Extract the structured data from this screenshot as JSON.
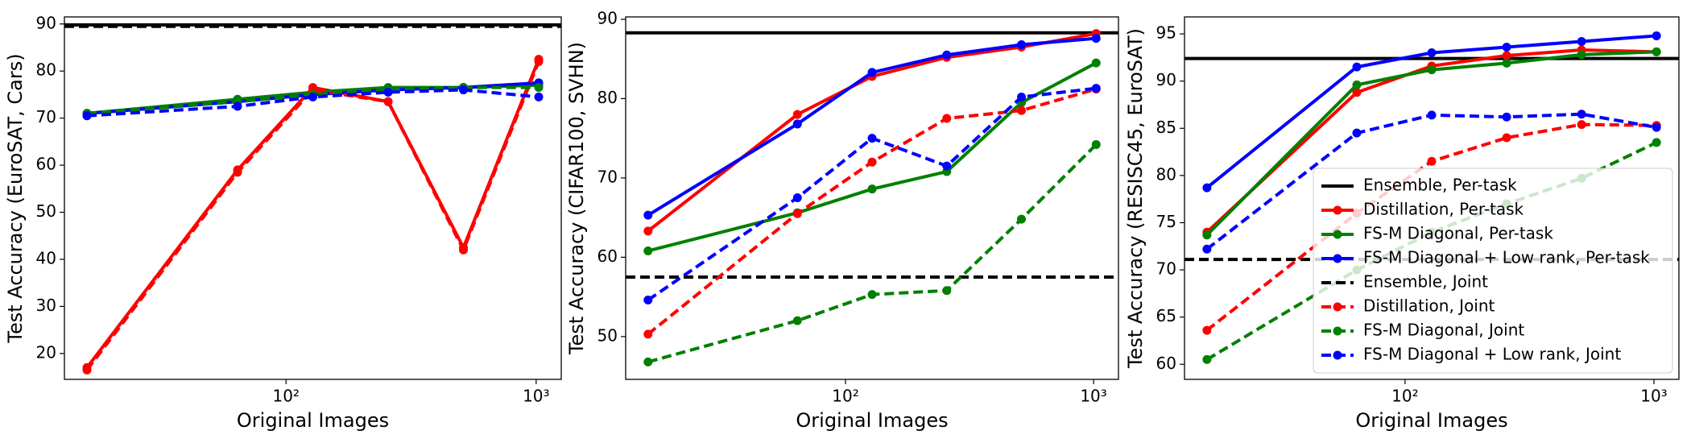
{
  "chart_data": [
    {
      "type": "line",
      "xlabel": "Original Images",
      "ylabel": "Test Accuracy (EuroSAT, Cars)",
      "xscale": "log",
      "xlim": [
        13,
        1260
      ],
      "xticks": [
        {
          "value": 100,
          "label": "10²"
        },
        {
          "value": 1000,
          "label": "10³"
        }
      ],
      "ylim": [
        14.5,
        91.5
      ],
      "yticks": [
        20,
        30,
        40,
        50,
        60,
        70,
        80,
        90
      ],
      "x": [
        16,
        64,
        128,
        256,
        512,
        1024
      ],
      "series": [
        {
          "color": "#000000",
          "dash": false,
          "hline": 89.8
        },
        {
          "color": "#ff0000",
          "dash": false,
          "values": [
            17,
            59,
            76.5,
            73.5,
            42.5,
            82.5
          ]
        },
        {
          "color": "#008000",
          "dash": false,
          "values": [
            71,
            74,
            75.5,
            76.5,
            76.5,
            77
          ]
        },
        {
          "color": "#0000ff",
          "dash": false,
          "values": [
            71,
            73.5,
            75,
            76,
            76.5,
            77.5
          ]
        },
        {
          "color": "#000000",
          "dash": true,
          "hline": 89.5
        },
        {
          "color": "#ff0000",
          "dash": true,
          "values": [
            16.5,
            58.5,
            76,
            73.5,
            42,
            82
          ]
        },
        {
          "color": "#008000",
          "dash": true,
          "values": [
            71,
            73.5,
            75,
            76,
            76.5,
            76.5
          ]
        },
        {
          "color": "#0000ff",
          "dash": true,
          "values": [
            70.5,
            72.5,
            74.5,
            75.5,
            76,
            74.5
          ]
        }
      ]
    },
    {
      "type": "line",
      "xlabel": "Original Images",
      "ylabel": "Test Accuracy (CIFAR100, SVHN)",
      "xscale": "log",
      "xlim": [
        13,
        1260
      ],
      "xticks": [
        {
          "value": 100,
          "label": "10²"
        },
        {
          "value": 1000,
          "label": "10³"
        }
      ],
      "ylim": [
        44.6,
        90.3
      ],
      "yticks": [
        50,
        60,
        70,
        80,
        90
      ],
      "x": [
        16,
        64,
        128,
        256,
        512,
        1024
      ],
      "series": [
        {
          "color": "#000000",
          "dash": false,
          "hline": 88.3
        },
        {
          "color": "#ff0000",
          "dash": false,
          "values": [
            63.3,
            78,
            82.8,
            85.2,
            86.5,
            88.2
          ]
        },
        {
          "color": "#008000",
          "dash": false,
          "values": [
            60.8,
            65.6,
            68.6,
            70.8,
            79.5,
            84.5
          ]
        },
        {
          "color": "#0000ff",
          "dash": false,
          "values": [
            65.3,
            76.8,
            83.3,
            85.5,
            86.8,
            87.6
          ]
        },
        {
          "color": "#000000",
          "dash": true,
          "hline": 57.5
        },
        {
          "color": "#ff0000",
          "dash": true,
          "values": [
            50.3,
            65.5,
            72,
            77.5,
            78.5,
            81.2
          ]
        },
        {
          "color": "#008000",
          "dash": true,
          "values": [
            46.8,
            52,
            55.3,
            55.8,
            64.8,
            74.2
          ]
        },
        {
          "color": "#0000ff",
          "dash": true,
          "values": [
            54.6,
            67.5,
            75,
            71.5,
            80.2,
            81.3
          ]
        }
      ]
    },
    {
      "type": "line",
      "xlabel": "Original Images",
      "ylabel": "Test Accuracy (RESISC45, EuroSAT)",
      "xscale": "log",
      "xlim": [
        13,
        1260
      ],
      "xticks": [
        {
          "value": 100,
          "label": "10²"
        },
        {
          "value": 1000,
          "label": "10³"
        }
      ],
      "ylim": [
        58.4,
        96.8
      ],
      "yticks": [
        60,
        65,
        70,
        75,
        80,
        85,
        90,
        95
      ],
      "x": [
        16,
        64,
        128,
        256,
        512,
        1024
      ],
      "legend": "lower right",
      "series": [
        {
          "name": "Ensemble, Per-task",
          "color": "#000000",
          "dash": false,
          "hline": 92.4
        },
        {
          "name": "Distillation, Per-task",
          "color": "#ff0000",
          "dash": false,
          "values": [
            74,
            88.8,
            91.6,
            92.7,
            93.3,
            93.1
          ]
        },
        {
          "name": "FS-M Diagonal, Per-task",
          "color": "#008000",
          "dash": false,
          "values": [
            73.7,
            89.6,
            91.2,
            91.9,
            92.8,
            93.1
          ]
        },
        {
          "name": "FS-M Diagonal + Low rank, Per-task",
          "color": "#0000ff",
          "dash": false,
          "values": [
            78.7,
            91.5,
            93,
            93.6,
            94.2,
            94.8
          ]
        },
        {
          "name": "Ensemble, Joint",
          "color": "#000000",
          "dash": true,
          "hline": 71.1
        },
        {
          "name": "Distillation, Joint",
          "color": "#ff0000",
          "dash": true,
          "values": [
            63.6,
            76,
            81.5,
            84,
            85.4,
            85.3
          ]
        },
        {
          "name": "FS-M Diagonal, Joint",
          "color": "#008000",
          "dash": true,
          "values": [
            60.5,
            70,
            74,
            77,
            79.7,
            83.5
          ]
        },
        {
          "name": "FS-M Diagonal + Low rank, Joint",
          "color": "#0000ff",
          "dash": true,
          "values": [
            72.2,
            84.5,
            86.4,
            86.2,
            86.5,
            85.1
          ]
        }
      ]
    }
  ]
}
